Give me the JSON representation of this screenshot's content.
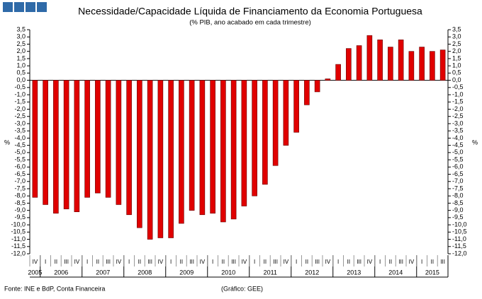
{
  "chart_data": {
    "type": "bar",
    "title": "Necessidade/Capacidade Líquida de Financiamento da Economia Portuguesa",
    "subtitle": "(% PIB, ano acabado em cada trimestre)",
    "y_label": "%",
    "y2_label": "%",
    "source": "Fonte: INE e BdP, Conta Financeira",
    "credit": "(Gráfico: GEE)",
    "color": "#e00000",
    "categories": [
      "IV",
      "I",
      "II",
      "III",
      "IV",
      "I",
      "II",
      "III",
      "IV",
      "I",
      "II",
      "III",
      "IV",
      "I",
      "II",
      "III",
      "IV",
      "I",
      "II",
      "III",
      "IV",
      "I",
      "II",
      "III",
      "IV",
      "I",
      "II",
      "III",
      "IV",
      "I",
      "II",
      "III",
      "IV",
      "I",
      "II",
      "III",
      "IV",
      "I",
      "II",
      "III"
    ],
    "years": [
      "2005",
      "2006",
      "2007",
      "2008",
      "2009",
      "2010",
      "2011",
      "2012",
      "2013",
      "2014",
      "2015"
    ],
    "values": [
      -8.1,
      -8.6,
      -9.2,
      -8.9,
      -9.1,
      -8.1,
      -7.8,
      -8.1,
      -8.6,
      -9.3,
      -10.2,
      -11.0,
      -10.9,
      -10.9,
      -9.9,
      -9.0,
      -9.3,
      -9.2,
      -9.8,
      -9.6,
      -8.7,
      -8.0,
      -7.2,
      -5.9,
      -4.5,
      -3.6,
      -1.7,
      -0.8,
      0.1,
      1.1,
      2.2,
      2.4,
      3.1,
      2.8,
      2.3,
      2.8,
      2.0,
      2.3,
      2.0,
      2.1
    ],
    "ylim": [
      -12,
      3.5
    ],
    "yticks": [
      {
        "value": 3.5,
        "label": "3,5"
      },
      {
        "value": 3,
        "label": "3,0"
      },
      {
        "value": 2.5,
        "label": "2,5"
      },
      {
        "value": 2,
        "label": "2,0"
      },
      {
        "value": 1.5,
        "label": "1,5"
      },
      {
        "value": 1,
        "label": "1,0"
      },
      {
        "value": 0.5,
        "label": "0,5"
      },
      {
        "value": 0,
        "label": "0,0"
      },
      {
        "value": -0.5,
        "label": "-0,5"
      },
      {
        "value": -1,
        "label": "-1,0"
      },
      {
        "value": -1.5,
        "label": "-1,5"
      },
      {
        "value": -2,
        "label": "-2,0"
      },
      {
        "value": -2.5,
        "label": "-2,5"
      },
      {
        "value": -3,
        "label": "-3,0"
      },
      {
        "value": -3.5,
        "label": "-3,5"
      },
      {
        "value": -4,
        "label": "-4,0"
      },
      {
        "value": -4.5,
        "label": "-4,5"
      },
      {
        "value": -5,
        "label": "-5,0"
      },
      {
        "value": -5.5,
        "label": "-5,5"
      },
      {
        "value": -6,
        "label": "-6,0"
      },
      {
        "value": -6.5,
        "label": "-6,5"
      },
      {
        "value": -7,
        "label": "-7,0"
      },
      {
        "value": -7.5,
        "label": "-7,5"
      },
      {
        "value": -8,
        "label": "-8,0"
      },
      {
        "value": -8.5,
        "label": "-8,5"
      },
      {
        "value": -9,
        "label": "-9,0"
      },
      {
        "value": -9.5,
        "label": "-9,5"
      },
      {
        "value": -10,
        "label": "-10,0"
      },
      {
        "value": -10.5,
        "label": "-10,5"
      },
      {
        "value": -11,
        "label": "-11,0"
      },
      {
        "value": -11.5,
        "label": "-11,5"
      },
      {
        "value": -12,
        "label": "-12,0"
      }
    ],
    "y2lim": [
      -12,
      3.5
    ],
    "y2ticks": [
      {
        "value": 3.5,
        "label": "3,5"
      },
      {
        "value": 3,
        "label": "3,0"
      },
      {
        "value": 2.5,
        "label": "2,5"
      },
      {
        "value": 2,
        "label": "2,0"
      },
      {
        "value": 1.5,
        "label": "1,5"
      },
      {
        "value": 1,
        "label": "1,0"
      },
      {
        "value": 0.5,
        "label": "0,5"
      },
      {
        "value": 0,
        "label": "0,0"
      },
      {
        "value": -0.5,
        "label": "-0,5"
      },
      {
        "value": -1,
        "label": "-1,0"
      },
      {
        "value": -1.5,
        "label": "-1,5"
      },
      {
        "value": -2,
        "label": "-2,0"
      },
      {
        "value": -2.5,
        "label": "-2,5"
      },
      {
        "value": -3,
        "label": "-3,0"
      },
      {
        "value": -3.5,
        "label": "-3,5"
      },
      {
        "value": -4,
        "label": "-4,0"
      },
      {
        "value": -4.5,
        "label": "-4,5"
      },
      {
        "value": -5,
        "label": "-5,0"
      },
      {
        "value": -5.5,
        "label": "-5,5"
      },
      {
        "value": -6,
        "label": "-6,0"
      },
      {
        "value": -6.5,
        "label": "-6,5"
      },
      {
        "value": -7,
        "label": "-7,0"
      },
      {
        "value": -7.5,
        "label": "-7,5"
      },
      {
        "value": -8,
        "label": "-8,0"
      },
      {
        "value": -8.5,
        "label": "-8,5"
      },
      {
        "value": -9,
        "label": "-9,0"
      },
      {
        "value": -9.5,
        "label": "-9,5"
      },
      {
        "value": -10,
        "label": "-10,0"
      },
      {
        "value": -10.5,
        "label": "-10,5"
      },
      {
        "value": -11,
        "label": "-11,0"
      },
      {
        "value": -11.5,
        "label": "-11,5"
      },
      {
        "value": -12,
        "label": "-12,0"
      }
    ],
    "grid": false
  }
}
